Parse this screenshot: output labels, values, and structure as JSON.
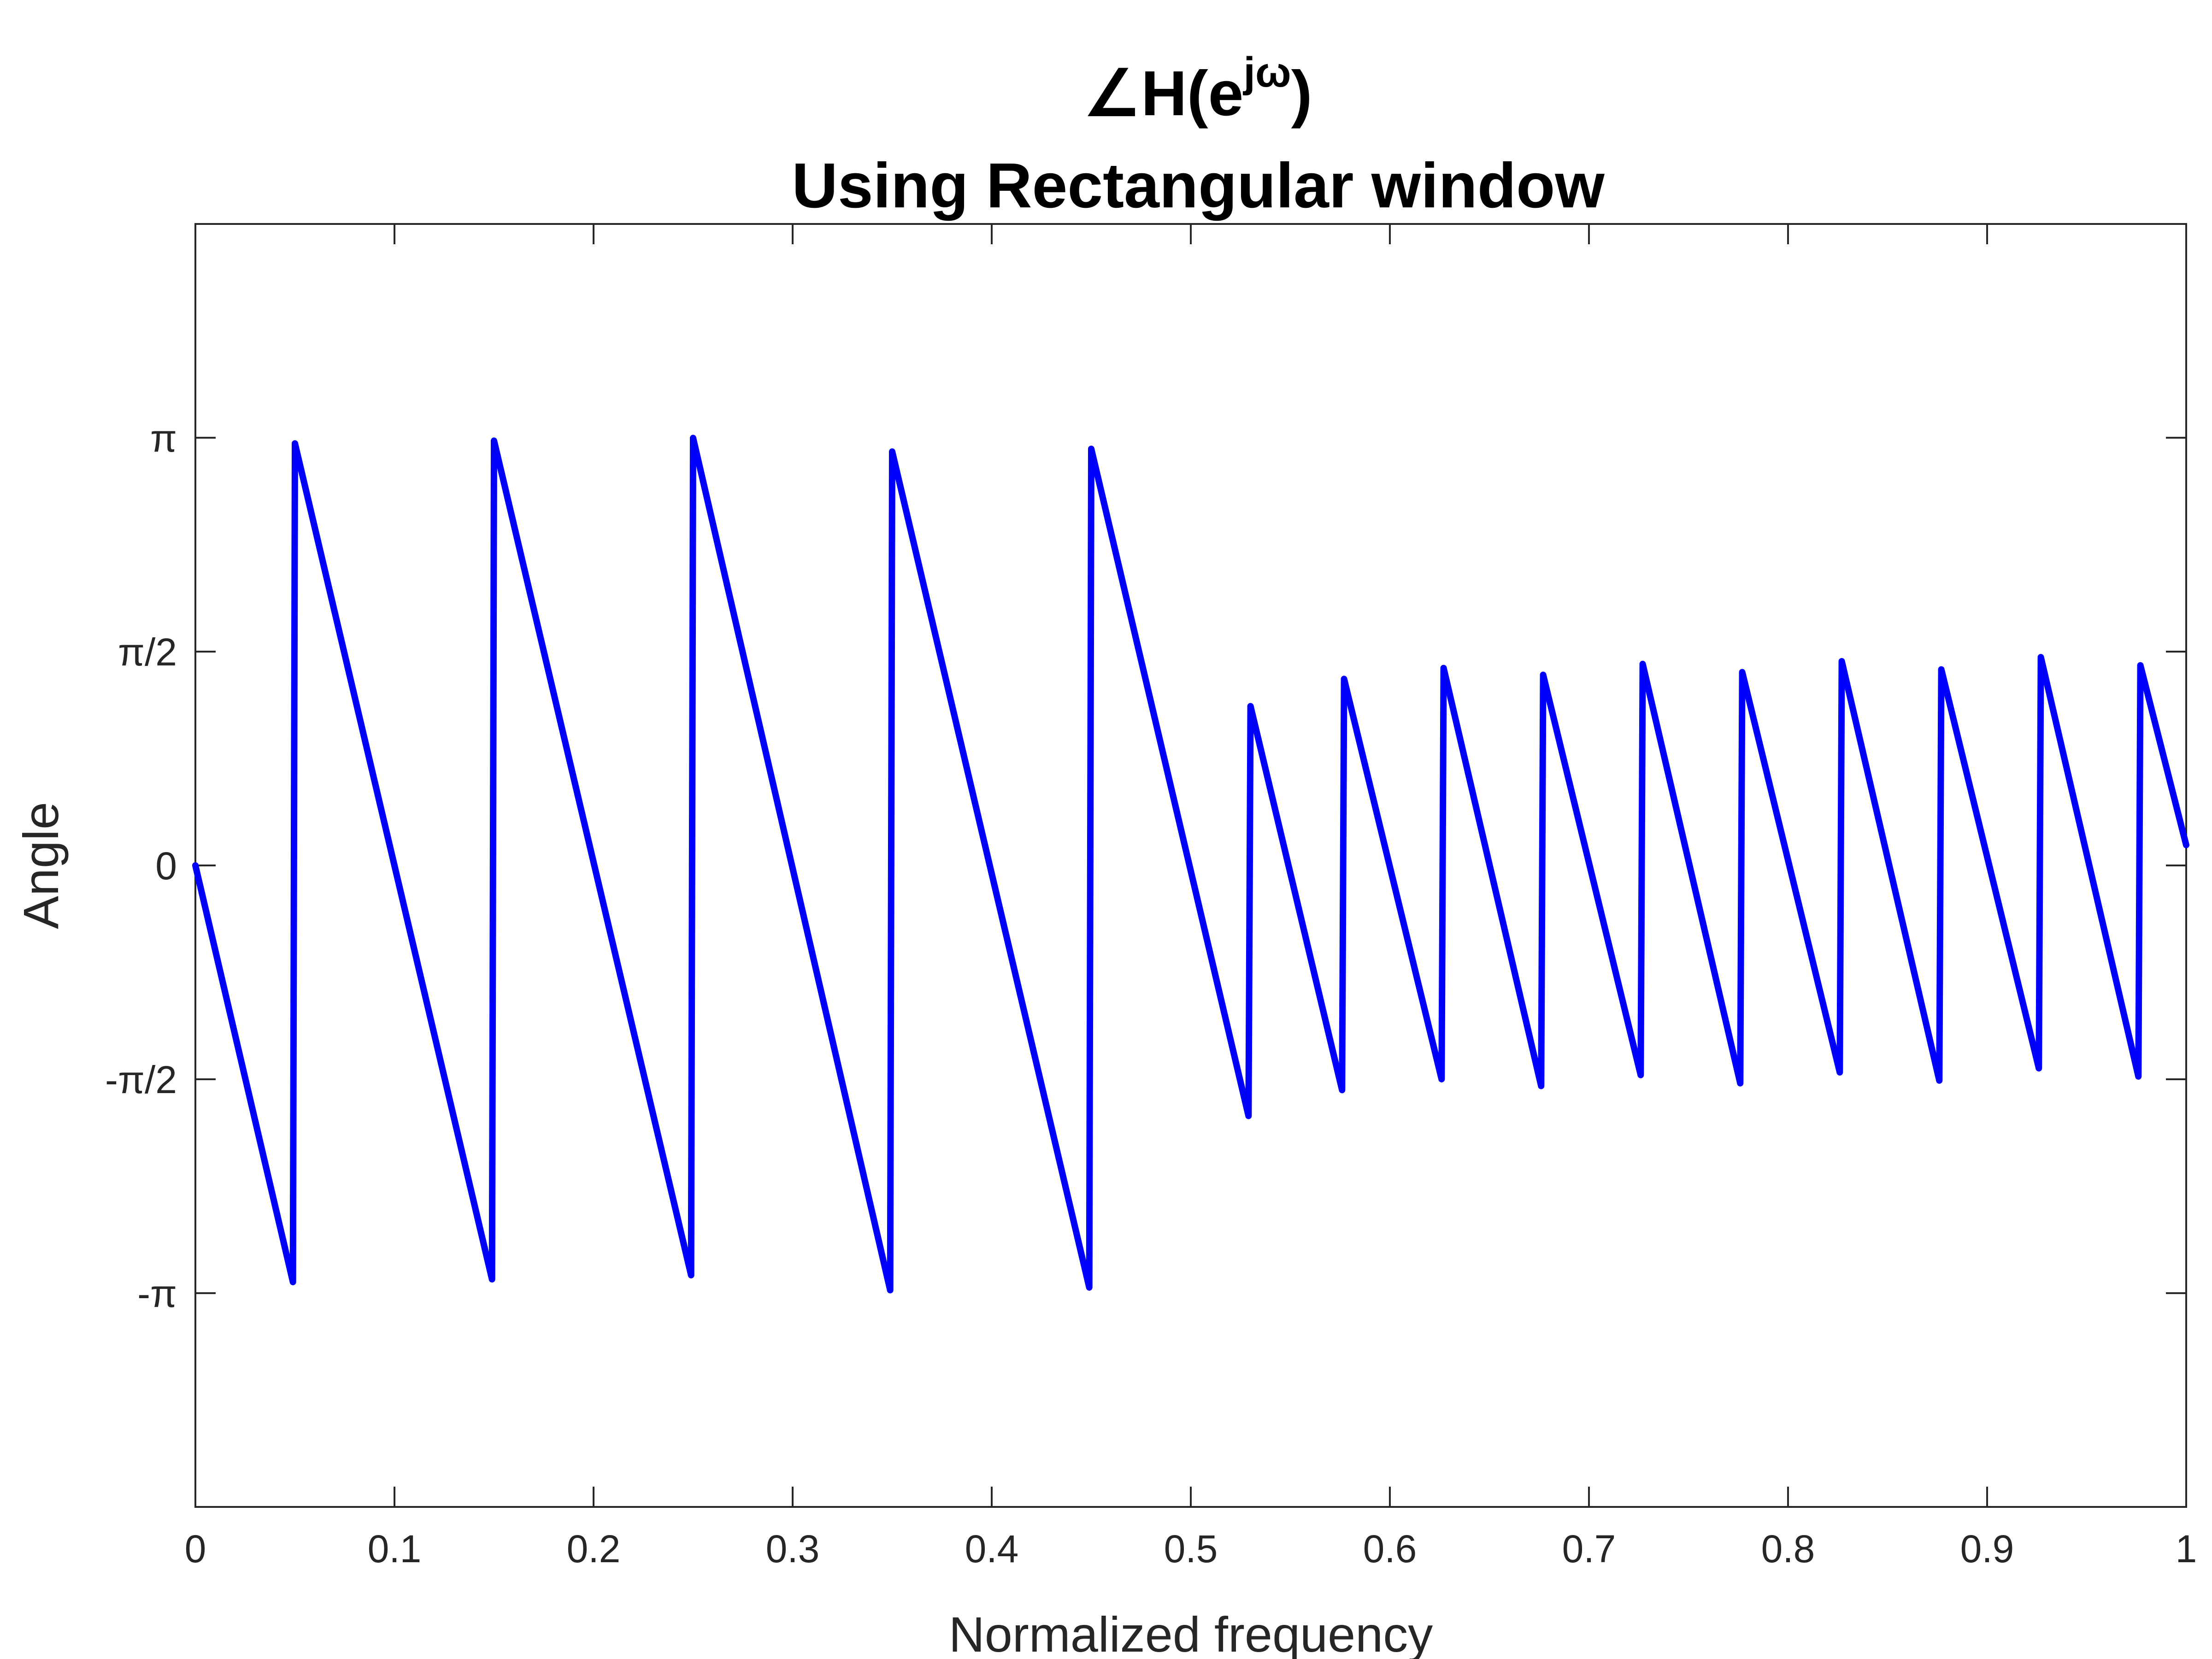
{
  "chart_data": {
    "type": "line",
    "title_parts": {
      "angle_symbol": "∠",
      "base": "H(e",
      "superscript": "jω",
      "close": ")"
    },
    "subtitle": "Using Rectangular window",
    "xlabel": "Normalized frequency",
    "ylabel": "Angle",
    "xlim": [
      0,
      1
    ],
    "ylim": [
      -4.712,
      4.712
    ],
    "x_ticks": [
      {
        "value": 0,
        "label": "0"
      },
      {
        "value": 0.1,
        "label": "0.1"
      },
      {
        "value": 0.2,
        "label": "0.2"
      },
      {
        "value": 0.3,
        "label": "0.3"
      },
      {
        "value": 0.4,
        "label": "0.4"
      },
      {
        "value": 0.5,
        "label": "0.5"
      },
      {
        "value": 0.6,
        "label": "0.6"
      },
      {
        "value": 0.7,
        "label": "0.7"
      },
      {
        "value": 0.8,
        "label": "0.8"
      },
      {
        "value": 0.9,
        "label": "0.9"
      },
      {
        "value": 1,
        "label": "1"
      }
    ],
    "y_ticks": [
      {
        "value": -3.1416,
        "label": "-π"
      },
      {
        "value": -1.5708,
        "label": "-π/2"
      },
      {
        "value": 0,
        "label": "0"
      },
      {
        "value": 1.5708,
        "label": "π/2"
      },
      {
        "value": 3.1416,
        "label": "π"
      }
    ],
    "grid": false,
    "line_color": "#0000ff",
    "series": [
      {
        "x": [
          0,
          0.049,
          0.05,
          0.149,
          0.15,
          0.249,
          0.25,
          0.349,
          0.35,
          0.449,
          0.45,
          0.529,
          0.53,
          0.576,
          0.577,
          0.626,
          0.627,
          0.676,
          0.677,
          0.726,
          0.727,
          0.776,
          0.777,
          0.826,
          0.827,
          0.876,
          0.877,
          0.926,
          0.927,
          0.976,
          0.977,
          1.0
        ],
        "y": [
          0,
          -3.06,
          3.1,
          -3.04,
          3.12,
          -3.01,
          3.14,
          -3.12,
          3.04,
          -3.1,
          3.06,
          -1.84,
          1.17,
          -1.65,
          1.37,
          -1.57,
          1.45,
          -1.62,
          1.4,
          -1.54,
          1.48,
          -1.6,
          1.42,
          -1.52,
          1.5,
          -1.58,
          1.44,
          -1.49,
          1.53,
          -1.55,
          1.47,
          0.15
        ]
      }
    ]
  }
}
